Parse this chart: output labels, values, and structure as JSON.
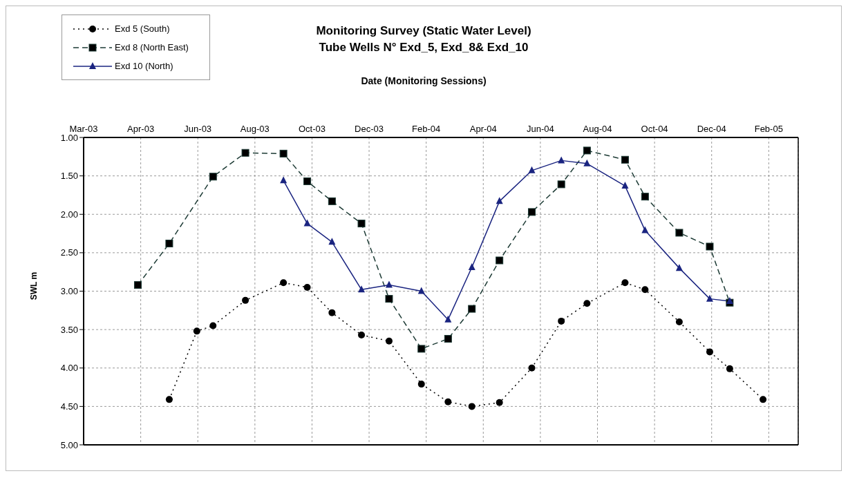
{
  "chart_data": {
    "type": "line",
    "title": "Monitoring Survey (Static Water Level)",
    "subtitle": "Tube Wells N° Exd_5, Exd_8& Exd_10",
    "xlabel": "Date (Monitoring Sessions)",
    "ylabel": "SWL m",
    "xlim": [
      "2003-03-01",
      "2005-03-21"
    ],
    "xticks": [
      {
        "value": "2003-03-01",
        "label": "Mar-03"
      },
      {
        "value": "2003-04-30",
        "label": "Apr-03"
      },
      {
        "value": "2003-06-29",
        "label": "Jun-03"
      },
      {
        "value": "2003-08-28",
        "label": "Aug-03"
      },
      {
        "value": "2003-10-27",
        "label": "Oct-03"
      },
      {
        "value": "2003-12-26",
        "label": "Dec-03"
      },
      {
        "value": "2004-02-24",
        "label": "Feb-04"
      },
      {
        "value": "2004-04-24",
        "label": "Apr-04"
      },
      {
        "value": "2004-06-23",
        "label": "Jun-04"
      },
      {
        "value": "2004-08-22",
        "label": "Aug-04"
      },
      {
        "value": "2004-10-21",
        "label": "Oct-04"
      },
      {
        "value": "2004-12-20",
        "label": "Dec-04"
      },
      {
        "value": "2005-02-18",
        "label": "Feb-05"
      }
    ],
    "ylim": [
      5,
      1
    ],
    "yticks": [
      {
        "value": 1,
        "label": "1.00"
      },
      {
        "value": 1.5,
        "label": "1.50"
      },
      {
        "value": 2,
        "label": "2.00"
      },
      {
        "value": 2.5,
        "label": "2.50"
      },
      {
        "value": 3,
        "label": "3.00"
      },
      {
        "value": 3.5,
        "label": "3.50"
      },
      {
        "value": 4,
        "label": "4.00"
      },
      {
        "value": 4.5,
        "label": "4.50"
      },
      {
        "value": 5,
        "label": "5.00"
      }
    ],
    "grid": true,
    "legend": "top left",
    "series": [
      {
        "name": "Exd 5 (South)",
        "color": "#000000",
        "marker": "circle",
        "line_style": "dotted",
        "x": [
          "2003-05-30",
          "2003-06-28",
          "2003-07-15",
          "2003-08-18",
          "2003-09-27",
          "2003-10-22",
          "2003-11-17",
          "2003-12-18",
          "2004-01-16",
          "2004-02-19",
          "2004-03-18",
          "2004-04-12",
          "2004-05-11",
          "2004-06-14",
          "2004-07-15",
          "2004-08-11",
          "2004-09-20",
          "2004-10-11",
          "2004-11-16",
          "2004-12-18",
          "2005-01-08",
          "2005-02-12"
        ],
        "values": [
          4.41,
          3.52,
          3.45,
          3.12,
          2.89,
          2.95,
          3.28,
          3.57,
          3.65,
          4.21,
          4.44,
          4.5,
          4.45,
          4.0,
          3.39,
          3.16,
          2.89,
          2.98,
          3.4,
          3.79,
          4.01,
          4.41
        ]
      },
      {
        "name": "Exd 8 (North East)",
        "color": "#1c3a34",
        "marker": "square",
        "line_style": "dashed",
        "x": [
          "2003-04-27",
          "2003-05-30",
          "2003-07-15",
          "2003-08-18",
          "2003-09-27",
          "2003-10-22",
          "2003-11-17",
          "2003-12-18",
          "2004-01-16",
          "2004-02-19",
          "2004-03-18",
          "2004-04-12",
          "2004-05-11",
          "2004-06-14",
          "2004-07-15",
          "2004-08-11",
          "2004-09-20",
          "2004-10-11",
          "2004-11-16",
          "2004-12-18",
          "2005-01-08"
        ],
        "values": [
          2.92,
          2.38,
          1.51,
          1.2,
          1.21,
          1.57,
          1.83,
          2.12,
          3.1,
          3.75,
          3.62,
          3.23,
          2.6,
          1.97,
          1.61,
          1.17,
          1.29,
          1.77,
          2.24,
          2.42,
          3.15
        ]
      },
      {
        "name": "Exd 10 (North)",
        "color": "#1a2480",
        "marker": "triangle",
        "line_style": "solid",
        "x": [
          "2003-09-27",
          "2003-10-22",
          "2003-11-17",
          "2003-12-18",
          "2004-01-16",
          "2004-02-19",
          "2004-03-18",
          "2004-04-12",
          "2004-05-11",
          "2004-06-14",
          "2004-07-15",
          "2004-08-11",
          "2004-09-20",
          "2004-10-11",
          "2004-11-16",
          "2004-12-18",
          "2005-01-08"
        ],
        "values": [
          1.56,
          2.12,
          2.36,
          2.98,
          2.92,
          3.0,
          3.37,
          2.69,
          1.83,
          1.43,
          1.3,
          1.34,
          1.63,
          2.21,
          2.7,
          3.1,
          3.13
        ]
      }
    ]
  }
}
